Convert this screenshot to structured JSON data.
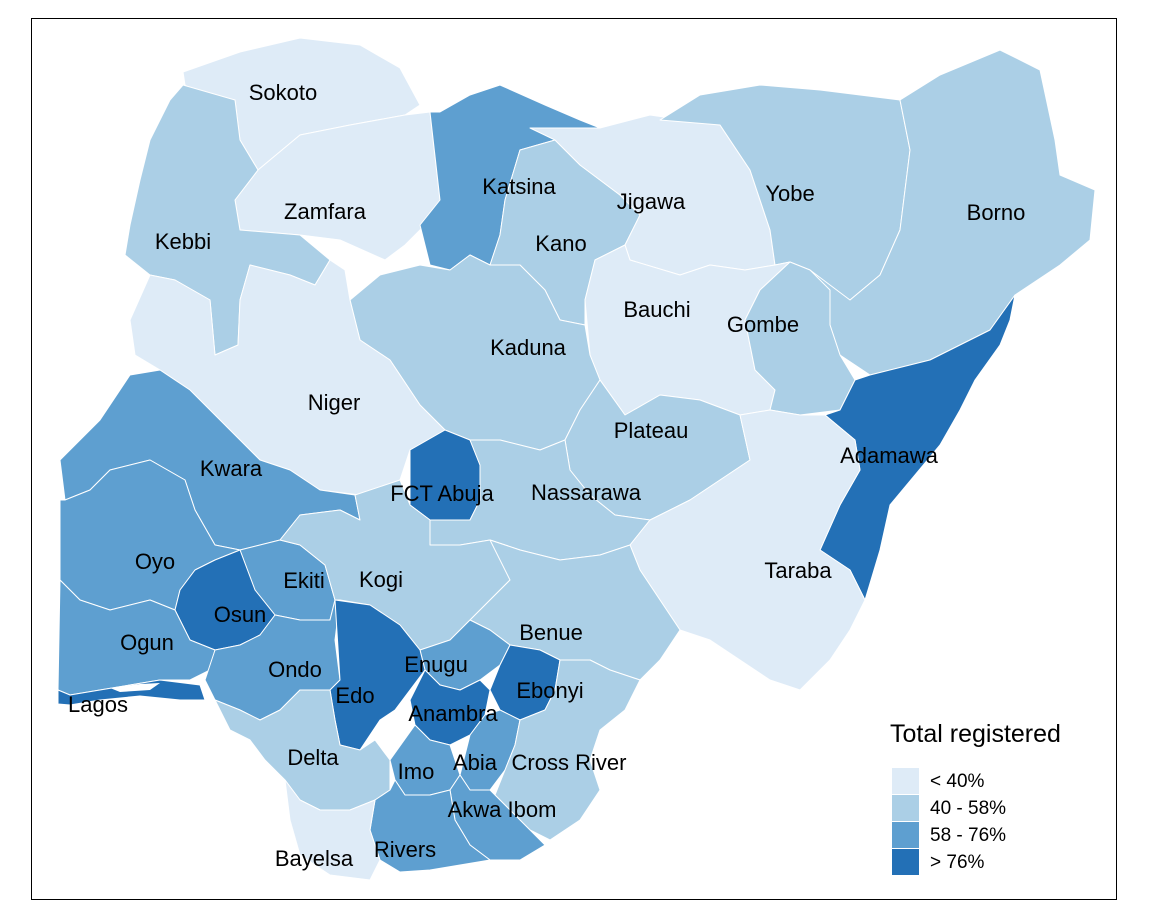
{
  "legend": {
    "title": "Total registered",
    "items": [
      {
        "label": "< 40%",
        "color": "#deebf7"
      },
      {
        "label": "40 - 58%",
        "color": "#abcfe6"
      },
      {
        "label": "58 - 76%",
        "color": "#5e9fd0"
      },
      {
        "label": "> 76%",
        "color": "#2370b6"
      }
    ]
  },
  "states": [
    {
      "name": "Sokoto",
      "class": 0
    },
    {
      "name": "Zamfara",
      "class": 0
    },
    {
      "name": "Kebbi",
      "class": 1
    },
    {
      "name": "Katsina",
      "class": 2
    },
    {
      "name": "Kano",
      "class": 1
    },
    {
      "name": "Jigawa",
      "class": 0
    },
    {
      "name": "Yobe",
      "class": 1
    },
    {
      "name": "Borno",
      "class": 1
    },
    {
      "name": "Bauchi",
      "class": 0
    },
    {
      "name": "Gombe",
      "class": 1
    },
    {
      "name": "Kaduna",
      "class": 1
    },
    {
      "name": "Niger",
      "class": 0
    },
    {
      "name": "Plateau",
      "class": 1
    },
    {
      "name": "Adamawa",
      "class": 3
    },
    {
      "name": "Kwara",
      "class": 2
    },
    {
      "name": "FCT Abuja",
      "class": 3
    },
    {
      "name": "Nassarawa",
      "class": 1
    },
    {
      "name": "Taraba",
      "class": 0
    },
    {
      "name": "Oyo",
      "class": 2
    },
    {
      "name": "Ekiti",
      "class": 2
    },
    {
      "name": "Kogi",
      "class": 1
    },
    {
      "name": "Osun",
      "class": 3
    },
    {
      "name": "Benue",
      "class": 1
    },
    {
      "name": "Ogun",
      "class": 2
    },
    {
      "name": "Enugu",
      "class": 2
    },
    {
      "name": "Ondo",
      "class": 2
    },
    {
      "name": "Ebonyi",
      "class": 3
    },
    {
      "name": "Edo",
      "class": 3
    },
    {
      "name": "Lagos",
      "class": 3
    },
    {
      "name": "Anambra",
      "class": 3
    },
    {
      "name": "Delta",
      "class": 1
    },
    {
      "name": "Abia",
      "class": 2
    },
    {
      "name": "Cross River",
      "class": 1
    },
    {
      "name": "Imo",
      "class": 2
    },
    {
      "name": "Akwa Ibom",
      "class": 2
    },
    {
      "name": "Rivers",
      "class": 2
    },
    {
      "name": "Bayelsa",
      "class": 0
    }
  ]
}
